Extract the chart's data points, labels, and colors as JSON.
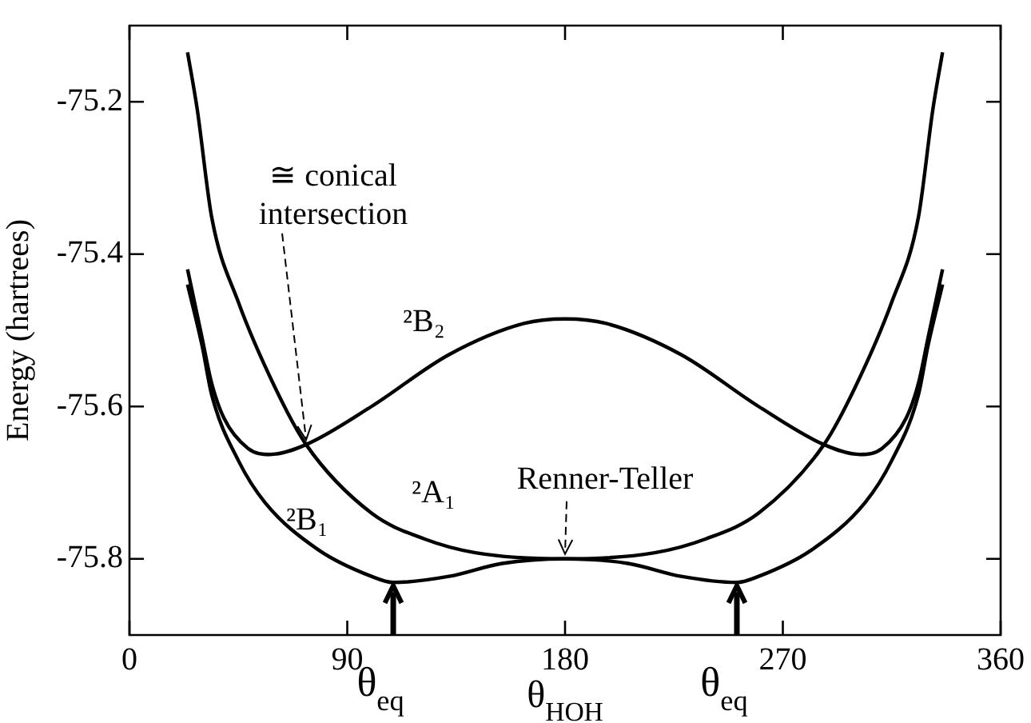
{
  "chart_data": {
    "type": "line",
    "xlabel": "θ$_{HOH}$",
    "ylabel": "Energy (hartrees)",
    "xlim": [
      0,
      360
    ],
    "xticks": [
      0,
      90,
      180,
      270,
      360
    ],
    "ylim": [
      -75.9,
      -75.1
    ],
    "yticks": [
      -75.8,
      -75.6,
      -75.4,
      -75.2
    ],
    "grid": false,
    "legend": false,
    "marker": "none",
    "line_style": "solid",
    "series": [
      {
        "name": "²A₁",
        "color": "#000000",
        "x": [
          24,
          28,
          34,
          45,
          60,
          73,
          100,
          122,
          143,
          180,
          217,
          238,
          260,
          287,
          300,
          315,
          326,
          332,
          336
        ],
        "values": [
          -75.135,
          -75.21,
          -75.352,
          -75.463,
          -75.574,
          -75.65,
          -75.74,
          -75.774,
          -75.792,
          -75.8,
          -75.792,
          -75.774,
          -75.74,
          -75.65,
          -75.574,
          -75.463,
          -75.352,
          -75.21,
          -75.135
        ]
      },
      {
        "name": "²B₂",
        "color": "#000000",
        "x": [
          24,
          30,
          34,
          39,
          49,
          58,
          73,
          100,
          132,
          163,
          180,
          197,
          228,
          260,
          287,
          302,
          311,
          321,
          326,
          330,
          336
        ],
        "values": [
          -75.42,
          -75.51,
          -75.57,
          -75.615,
          -75.655,
          -75.663,
          -75.65,
          -75.6,
          -75.532,
          -75.491,
          -75.485,
          -75.491,
          -75.532,
          -75.6,
          -75.65,
          -75.663,
          -75.655,
          -75.615,
          -75.57,
          -75.51,
          -75.42
        ]
      },
      {
        "name": "²B₁",
        "color": "#000000",
        "x": [
          24,
          30,
          34,
          45,
          56,
          78,
          100,
          109,
          132,
          154,
          180,
          206,
          228,
          251,
          260,
          282,
          304,
          315,
          326,
          330,
          336
        ],
        "values": [
          -75.44,
          -75.52,
          -75.585,
          -75.671,
          -75.726,
          -75.788,
          -75.823,
          -75.831,
          -75.823,
          -75.806,
          -75.8,
          -75.806,
          -75.823,
          -75.831,
          -75.823,
          -75.788,
          -75.726,
          -75.671,
          -75.585,
          -75.52,
          -75.44
        ]
      }
    ],
    "annotations": [
      {
        "text": "≅ conical intersection",
        "x": 73,
        "y": -75.65
      },
      {
        "text": "Renner-Teller",
        "x": 180,
        "y": -75.8
      },
      {
        "text": "θ$_{eq}$",
        "x": 109,
        "y": -75.831
      },
      {
        "text": "θ$_{eq}$",
        "x": 251,
        "y": -75.831
      }
    ]
  }
}
